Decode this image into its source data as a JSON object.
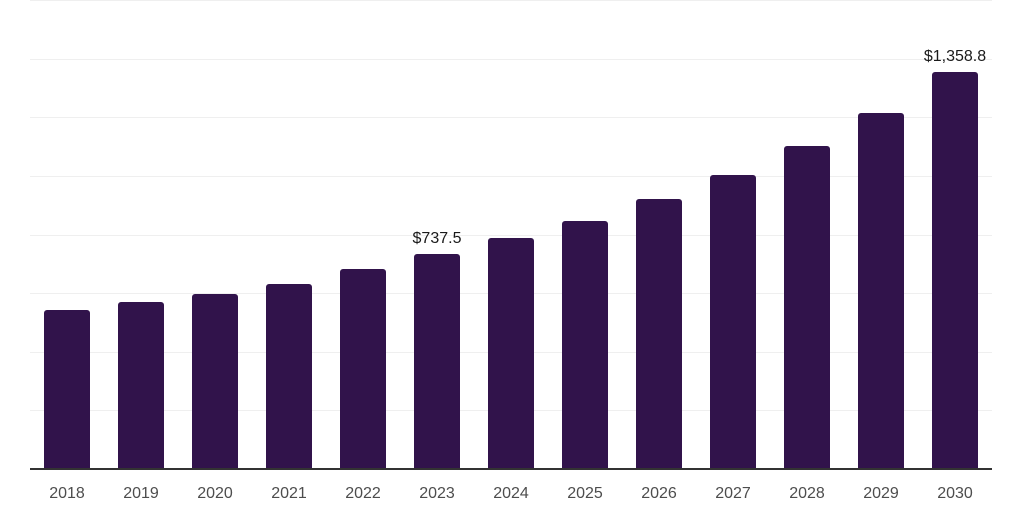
{
  "chart_data": {
    "type": "bar",
    "title": "",
    "xlabel": "",
    "ylabel": "",
    "categories": [
      "2018",
      "2019",
      "2020",
      "2021",
      "2022",
      "2023",
      "2024",
      "2025",
      "2026",
      "2027",
      "2028",
      "2029",
      "2030"
    ],
    "values": [
      545,
      572,
      599,
      636,
      686,
      737.5,
      790,
      851,
      926,
      1007,
      1106,
      1218,
      1358.8
    ],
    "data_labels": [
      "",
      "",
      "",
      "",
      "",
      "$737.5",
      "",
      "",
      "",
      "",
      "",
      "",
      "$1,358.8"
    ],
    "ylim": [
      0,
      1600
    ],
    "gridline_step": 200,
    "grid": "horizontal",
    "legend": "none",
    "y_tick_labels_visible": false,
    "colors": {
      "bar": "#31134B",
      "axis": "#333333",
      "gridline": "#EFEFEF",
      "tick_label": "#4D4D4D",
      "data_label": "#1A1A1A",
      "background": "#FFFFFF"
    }
  }
}
